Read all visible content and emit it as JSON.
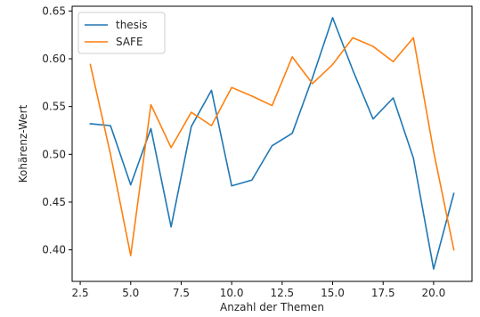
{
  "chart_data": {
    "type": "line",
    "title": "",
    "xlabel": "Anzahl der Themen",
    "ylabel": "Kohärenz-Wert",
    "x": [
      3,
      4,
      5,
      6,
      7,
      8,
      9,
      10,
      11,
      12,
      13,
      14,
      15,
      16,
      17,
      18,
      19,
      20,
      21
    ],
    "series": [
      {
        "name": "thesis",
        "color": "#1f77b4",
        "values": [
          0.532,
          0.53,
          0.468,
          0.527,
          0.424,
          0.529,
          0.567,
          0.467,
          0.473,
          0.509,
          0.522,
          0.58,
          0.643,
          0.588,
          0.537,
          0.559,
          0.496,
          0.38,
          0.459
        ]
      },
      {
        "name": "SAFE",
        "color": "#ff7f0e",
        "values": [
          0.594,
          0.5,
          0.394,
          0.552,
          0.507,
          0.544,
          0.53,
          0.57,
          0.561,
          0.551,
          0.602,
          0.574,
          0.594,
          0.622,
          0.613,
          0.597,
          0.622,
          0.503,
          0.4
        ]
      }
    ],
    "xlim": [
      2.1,
      21.9
    ],
    "ylim": [
      0.367,
      0.655
    ],
    "xticks": [
      2.5,
      5.0,
      7.5,
      10.0,
      12.5,
      15.0,
      17.5,
      20.0
    ],
    "xtick_labels": [
      "2.5",
      "5.0",
      "7.5",
      "10.0",
      "12.5",
      "15.0",
      "17.5",
      "20.0"
    ],
    "yticks": [
      0.4,
      0.45,
      0.5,
      0.55,
      0.6,
      0.65
    ],
    "ytick_labels": [
      "0.40",
      "0.45",
      "0.50",
      "0.55",
      "0.60",
      "0.65"
    ],
    "grid": false,
    "legend_position": "top-left"
  }
}
